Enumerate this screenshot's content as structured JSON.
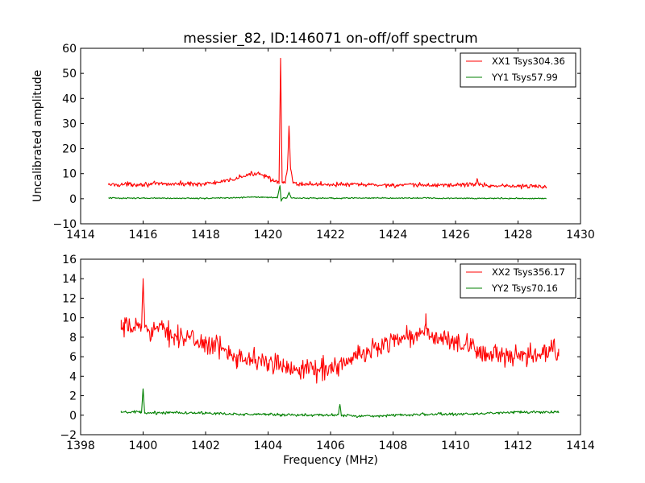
{
  "chart_data": [
    {
      "type": "line",
      "title": "messier_82, ID:146071 on-off/off spectrum",
      "xlabel": "",
      "ylabel": "Uncalibrated amplitude",
      "xlim": [
        1414,
        1430
      ],
      "ylim": [
        -10,
        60
      ],
      "xticks": [
        "1414",
        "1416",
        "1418",
        "1420",
        "1422",
        "1424",
        "1426",
        "1428",
        "1430"
      ],
      "yticks": [
        "−10",
        "0",
        "10",
        "20",
        "30",
        "40",
        "50",
        "60"
      ],
      "xtick_values": [
        1414,
        1416,
        1418,
        1420,
        1422,
        1424,
        1426,
        1428,
        1430
      ],
      "ytick_values": [
        -10,
        0,
        10,
        20,
        30,
        40,
        50,
        60
      ],
      "grid": false,
      "legend_position": "top-right",
      "series": [
        {
          "name": "XX1 Tsys304.36",
          "color": "#ff0000",
          "noise": 0.45,
          "x": [
            1414.9,
            1416.0,
            1417.0,
            1418.0,
            1418.6,
            1419.0,
            1419.4,
            1419.7,
            1420.0,
            1420.2,
            1420.35,
            1420.4,
            1420.45,
            1420.55,
            1420.62,
            1420.67,
            1420.72,
            1420.8,
            1421.0,
            1422.0,
            1423.0,
            1424.0,
            1425.0,
            1426.0,
            1426.65,
            1426.7,
            1426.75,
            1427.0,
            1428.0,
            1428.9
          ],
          "y": [
            5.6,
            5.8,
            5.9,
            6.0,
            6.8,
            8.2,
            9.6,
            10.3,
            8.8,
            6.8,
            6.0,
            56.0,
            6.5,
            6.2,
            12.0,
            29.0,
            12.0,
            6.2,
            5.9,
            5.7,
            5.6,
            5.4,
            5.4,
            5.5,
            5.8,
            7.8,
            5.6,
            5.3,
            5.0,
            4.8
          ]
        },
        {
          "name": "YY1 Tsys57.99",
          "color": "#008000",
          "noise": 0.12,
          "x": [
            1414.9,
            1416.0,
            1418.0,
            1419.0,
            1419.6,
            1420.0,
            1420.3,
            1420.38,
            1420.42,
            1420.48,
            1420.6,
            1420.67,
            1420.74,
            1421.0,
            1424.0,
            1426.0,
            1428.9
          ],
          "y": [
            0.3,
            0.2,
            0.2,
            0.4,
            0.7,
            0.5,
            0.4,
            5.2,
            -1.0,
            0.3,
            0.3,
            2.6,
            0.3,
            0.2,
            0.3,
            0.2,
            0.1
          ]
        }
      ]
    },
    {
      "type": "line",
      "title": "",
      "xlabel": "Frequency (MHz)",
      "ylabel": "",
      "xlim": [
        1398,
        1414
      ],
      "ylim": [
        -2,
        16
      ],
      "xticks": [
        "1398",
        "1400",
        "1402",
        "1404",
        "1406",
        "1408",
        "1410",
        "1412",
        "1414"
      ],
      "yticks": [
        "−2",
        "0",
        "2",
        "4",
        "6",
        "8",
        "10",
        "12",
        "14",
        "16"
      ],
      "xtick_values": [
        1398,
        1400,
        1402,
        1404,
        1406,
        1408,
        1410,
        1412,
        1414
      ],
      "ytick_values": [
        -2,
        0,
        2,
        4,
        6,
        8,
        10,
        12,
        14,
        16
      ],
      "grid": false,
      "legend_position": "top-right",
      "series": [
        {
          "name": "XX2 Tsys356.17",
          "color": "#ff0000",
          "noise": 0.55,
          "x": [
            1399.3,
            1399.7,
            1399.95,
            1400.0,
            1400.05,
            1400.5,
            1401.0,
            1401.5,
            1402.0,
            1402.5,
            1403.0,
            1403.5,
            1404.0,
            1404.5,
            1405.0,
            1405.5,
            1406.0,
            1406.5,
            1407.0,
            1407.5,
            1408.0,
            1408.5,
            1409.0,
            1409.05,
            1409.1,
            1409.5,
            1410.0,
            1410.5,
            1411.0,
            1411.5,
            1412.0,
            1412.5,
            1413.0,
            1413.3
          ],
          "y": [
            8.8,
            9.0,
            9.2,
            14.0,
            9.0,
            8.8,
            8.3,
            7.8,
            7.4,
            6.8,
            6.2,
            5.7,
            5.3,
            5.0,
            4.9,
            4.7,
            4.9,
            5.4,
            6.2,
            7.0,
            7.8,
            8.1,
            8.2,
            10.4,
            8.2,
            7.9,
            7.4,
            6.8,
            6.4,
            6.0,
            5.8,
            6.1,
            6.5,
            6.8
          ]
        },
        {
          "name": "YY2 Tsys70.16",
          "color": "#008000",
          "noise": 0.07,
          "x": [
            1399.3,
            1399.95,
            1400.0,
            1400.05,
            1401.0,
            1402.0,
            1403.0,
            1404.0,
            1405.0,
            1406.0,
            1406.25,
            1406.3,
            1406.35,
            1407.0,
            1408.0,
            1409.0,
            1410.0,
            1411.0,
            1412.0,
            1413.3
          ],
          "y": [
            0.3,
            0.3,
            2.7,
            0.2,
            0.3,
            0.2,
            0.1,
            0.1,
            0.0,
            0.0,
            0.1,
            1.1,
            0.0,
            -0.1,
            0.0,
            0.1,
            0.1,
            0.2,
            0.3,
            0.3
          ]
        }
      ]
    }
  ]
}
